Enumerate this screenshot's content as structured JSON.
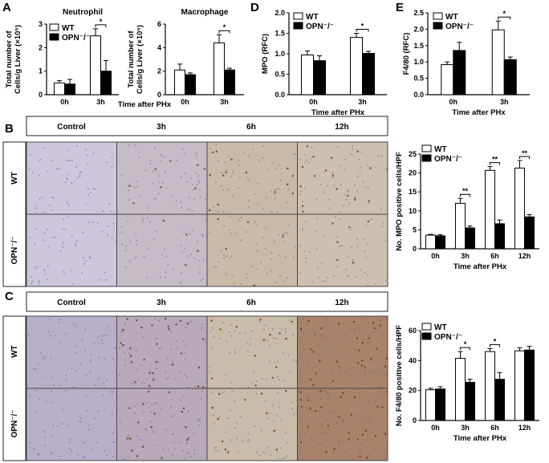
{
  "panels": {
    "A": "A",
    "B": "B",
    "C": "C",
    "D": "D",
    "E": "E"
  },
  "legend": {
    "wt": "WT",
    "opn": "OPN⁻/⁻"
  },
  "micro": {
    "cols": [
      "Control",
      "3h",
      "6h",
      "12h"
    ],
    "rows": [
      "WT",
      "OPN⁻/⁻"
    ],
    "palettes": {
      "B": [
        "#cdc6dc",
        "#c6bcc6",
        "#c9bba8",
        "#cdc0b0"
      ],
      "C": [
        "#b9aec9",
        "#b8aab8",
        "#c9bcaa",
        "#a8826a"
      ]
    }
  },
  "chart_data": [
    {
      "id": "A1",
      "type": "bar",
      "title": "Neutrophil",
      "ylabel": [
        "Total number of",
        "Cells/g Liver (×10⁵)"
      ],
      "xlabel": "",
      "categories": [
        "0h",
        "3h"
      ],
      "ylim": [
        0,
        3
      ],
      "yticks": [
        "0",
        "1",
        "2",
        "3"
      ],
      "series": [
        {
          "name": "WT",
          "values": [
            0.5,
            2.5
          ],
          "err": [
            0.1,
            0.3
          ]
        },
        {
          "name": "OPN⁻/⁻",
          "values": [
            0.45,
            1.0
          ],
          "err": [
            0.2,
            0.45
          ]
        }
      ],
      "sig": [
        {
          "cat": 1,
          "label": "*"
        }
      ],
      "legend": true
    },
    {
      "id": "A2",
      "type": "bar",
      "title": "Macrophage",
      "ylabel": [
        "Total number of",
        "Cells/g Liver (×10⁵)"
      ],
      "xlabel": "",
      "categories": [
        "0h",
        "3h"
      ],
      "ylim": [
        0,
        6
      ],
      "yticks": [
        "0",
        "2",
        "4",
        "6"
      ],
      "series": [
        {
          "name": "WT",
          "values": [
            2.1,
            4.4
          ],
          "err": [
            0.5,
            0.7
          ]
        },
        {
          "name": "OPN⁻/⁻",
          "values": [
            1.7,
            2.1
          ],
          "err": [
            0.15,
            0.15
          ]
        }
      ],
      "sig": [
        {
          "cat": 1,
          "label": "*"
        }
      ],
      "legend": false
    },
    {
      "id": "AX",
      "type": "bar",
      "xlabel": "Time after PHx"
    },
    {
      "id": "D",
      "type": "bar",
      "title": "",
      "ylabel": [
        "MPO (RFC)"
      ],
      "xlabel": "Time after PHx",
      "categories": [
        "0h",
        "3h"
      ],
      "ylim": [
        0,
        2
      ],
      "yticks": [
        "0.0",
        "0.5",
        "1.0",
        "1.5",
        "2.0"
      ],
      "series": [
        {
          "name": "WT",
          "values": [
            0.97,
            1.4
          ],
          "err": [
            0.1,
            0.1
          ]
        },
        {
          "name": "OPN⁻/⁻",
          "values": [
            0.83,
            1.01
          ],
          "err": [
            0.12,
            0.05
          ]
        }
      ],
      "sig": [
        {
          "cat": 1,
          "label": "*"
        }
      ],
      "legend": true
    },
    {
      "id": "E",
      "type": "bar",
      "title": "",
      "ylabel": [
        "F4/80 (RFC)"
      ],
      "xlabel": "Time after PHx",
      "categories": [
        "0h",
        "3h"
      ],
      "ylim": [
        0,
        2.5
      ],
      "yticks": [
        "0.0",
        "0.5",
        "1.0",
        "1.5",
        "2.0",
        "2.5"
      ],
      "series": [
        {
          "name": "WT",
          "values": [
            0.92,
            1.98
          ],
          "err": [
            0.08,
            0.27
          ]
        },
        {
          "name": "OPN⁻/⁻",
          "values": [
            1.35,
            1.07
          ],
          "err": [
            0.25,
            0.08
          ]
        }
      ],
      "sig": [
        {
          "cat": 1,
          "label": "*"
        }
      ],
      "legend": true
    },
    {
      "id": "B",
      "type": "bar",
      "title": "",
      "ylabel": [
        "No. MPO positive cells/HPF"
      ],
      "xlabel": "Time after PHx",
      "categories": [
        "0h",
        "3h",
        "6h",
        "12h"
      ],
      "ylim": [
        0,
        25
      ],
      "yticks": [
        "0",
        "5",
        "10",
        "15",
        "20",
        "25"
      ],
      "series": [
        {
          "name": "WT",
          "values": [
            3.6,
            12.0,
            20.7,
            21.3
          ],
          "err": [
            0.2,
            1.3,
            1.0,
            2.0
          ]
        },
        {
          "name": "OPN⁻/⁻",
          "values": [
            3.4,
            5.5,
            6.6,
            8.4
          ],
          "err": [
            0.3,
            0.5,
            1.0,
            0.6
          ]
        }
      ],
      "sig": [
        {
          "cat": 1,
          "label": "**"
        },
        {
          "cat": 2,
          "label": "**"
        },
        {
          "cat": 3,
          "label": "**"
        }
      ],
      "legend": true
    },
    {
      "id": "C",
      "type": "bar",
      "title": "",
      "ylabel": [
        "No. F4/80 positive cells/HPF"
      ],
      "xlabel": "Time after PHx",
      "categories": [
        "0h",
        "3h",
        "6h",
        "12h"
      ],
      "ylim": [
        0,
        60
      ],
      "yticks": [
        "0",
        "20",
        "40",
        "60"
      ],
      "series": [
        {
          "name": "WT",
          "values": [
            20.5,
            41.5,
            46.0,
            46.5
          ],
          "err": [
            1.0,
            4.5,
            2.0,
            2.0
          ]
        },
        {
          "name": "OPN⁻/⁻",
          "values": [
            21.0,
            25.5,
            27.5,
            47.0
          ],
          "err": [
            1.5,
            2.0,
            4.5,
            2.5
          ]
        }
      ],
      "sig": [
        {
          "cat": 1,
          "label": "*"
        },
        {
          "cat": 2,
          "label": "*"
        }
      ],
      "legend": true
    }
  ]
}
